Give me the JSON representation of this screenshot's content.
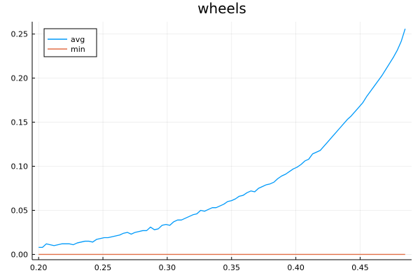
{
  "chart_data": {
    "type": "line",
    "title": "wheels",
    "xlabel": "",
    "ylabel": "",
    "xlim": [
      0.195,
      0.49
    ],
    "ylim": [
      -0.006,
      0.264
    ],
    "xticks": [
      0.2,
      0.25,
      0.3,
      0.35,
      0.4,
      0.45
    ],
    "xtick_labels": [
      "0.20",
      "0.25",
      "0.30",
      "0.35",
      "0.40",
      "0.45"
    ],
    "yticks": [
      0.0,
      0.05,
      0.1,
      0.15,
      0.2,
      0.25
    ],
    "ytick_labels": [
      "0.00",
      "0.05",
      "0.10",
      "0.15",
      "0.20",
      "0.25"
    ],
    "grid": true,
    "legend_position": "top-left",
    "series": [
      {
        "name": "avg",
        "color": "#009AFA",
        "x": [
          0.2,
          0.203,
          0.206,
          0.209,
          0.212,
          0.215,
          0.218,
          0.221,
          0.224,
          0.227,
          0.23,
          0.233,
          0.236,
          0.239,
          0.242,
          0.245,
          0.248,
          0.251,
          0.254,
          0.257,
          0.26,
          0.263,
          0.266,
          0.269,
          0.272,
          0.275,
          0.278,
          0.281,
          0.284,
          0.287,
          0.29,
          0.293,
          0.296,
          0.299,
          0.302,
          0.305,
          0.308,
          0.311,
          0.314,
          0.317,
          0.32,
          0.323,
          0.326,
          0.329,
          0.332,
          0.335,
          0.338,
          0.341,
          0.344,
          0.347,
          0.35,
          0.353,
          0.356,
          0.359,
          0.362,
          0.365,
          0.368,
          0.371,
          0.374,
          0.377,
          0.38,
          0.383,
          0.386,
          0.389,
          0.392,
          0.395,
          0.398,
          0.401,
          0.404,
          0.407,
          0.41,
          0.413,
          0.416,
          0.419,
          0.422,
          0.425,
          0.428,
          0.431,
          0.434,
          0.437,
          0.44,
          0.443,
          0.446,
          0.449,
          0.452,
          0.455,
          0.458,
          0.461,
          0.464,
          0.467,
          0.47,
          0.473,
          0.476,
          0.479,
          0.482,
          0.485
        ],
        "values": [
          0.008,
          0.008,
          0.012,
          0.011,
          0.01,
          0.011,
          0.012,
          0.012,
          0.012,
          0.011,
          0.013,
          0.014,
          0.015,
          0.015,
          0.014,
          0.017,
          0.018,
          0.019,
          0.019,
          0.02,
          0.021,
          0.022,
          0.024,
          0.025,
          0.023,
          0.025,
          0.026,
          0.027,
          0.027,
          0.031,
          0.028,
          0.029,
          0.033,
          0.034,
          0.033,
          0.037,
          0.039,
          0.039,
          0.041,
          0.043,
          0.045,
          0.046,
          0.05,
          0.049,
          0.051,
          0.053,
          0.053,
          0.055,
          0.057,
          0.06,
          0.061,
          0.063,
          0.066,
          0.067,
          0.07,
          0.072,
          0.071,
          0.075,
          0.077,
          0.079,
          0.08,
          0.082,
          0.086,
          0.089,
          0.091,
          0.094,
          0.097,
          0.099,
          0.102,
          0.106,
          0.108,
          0.114,
          0.116,
          0.118,
          0.123,
          0.128,
          0.133,
          0.138,
          0.143,
          0.148,
          0.153,
          0.157,
          0.162,
          0.167,
          0.172,
          0.179,
          0.185,
          0.191,
          0.197,
          0.203,
          0.21,
          0.217,
          0.224,
          0.232,
          0.242,
          0.256
        ]
      },
      {
        "name": "min",
        "color": "#E26F46",
        "x": [
          0.2,
          0.485
        ],
        "values": [
          0.0,
          0.0
        ]
      }
    ]
  }
}
